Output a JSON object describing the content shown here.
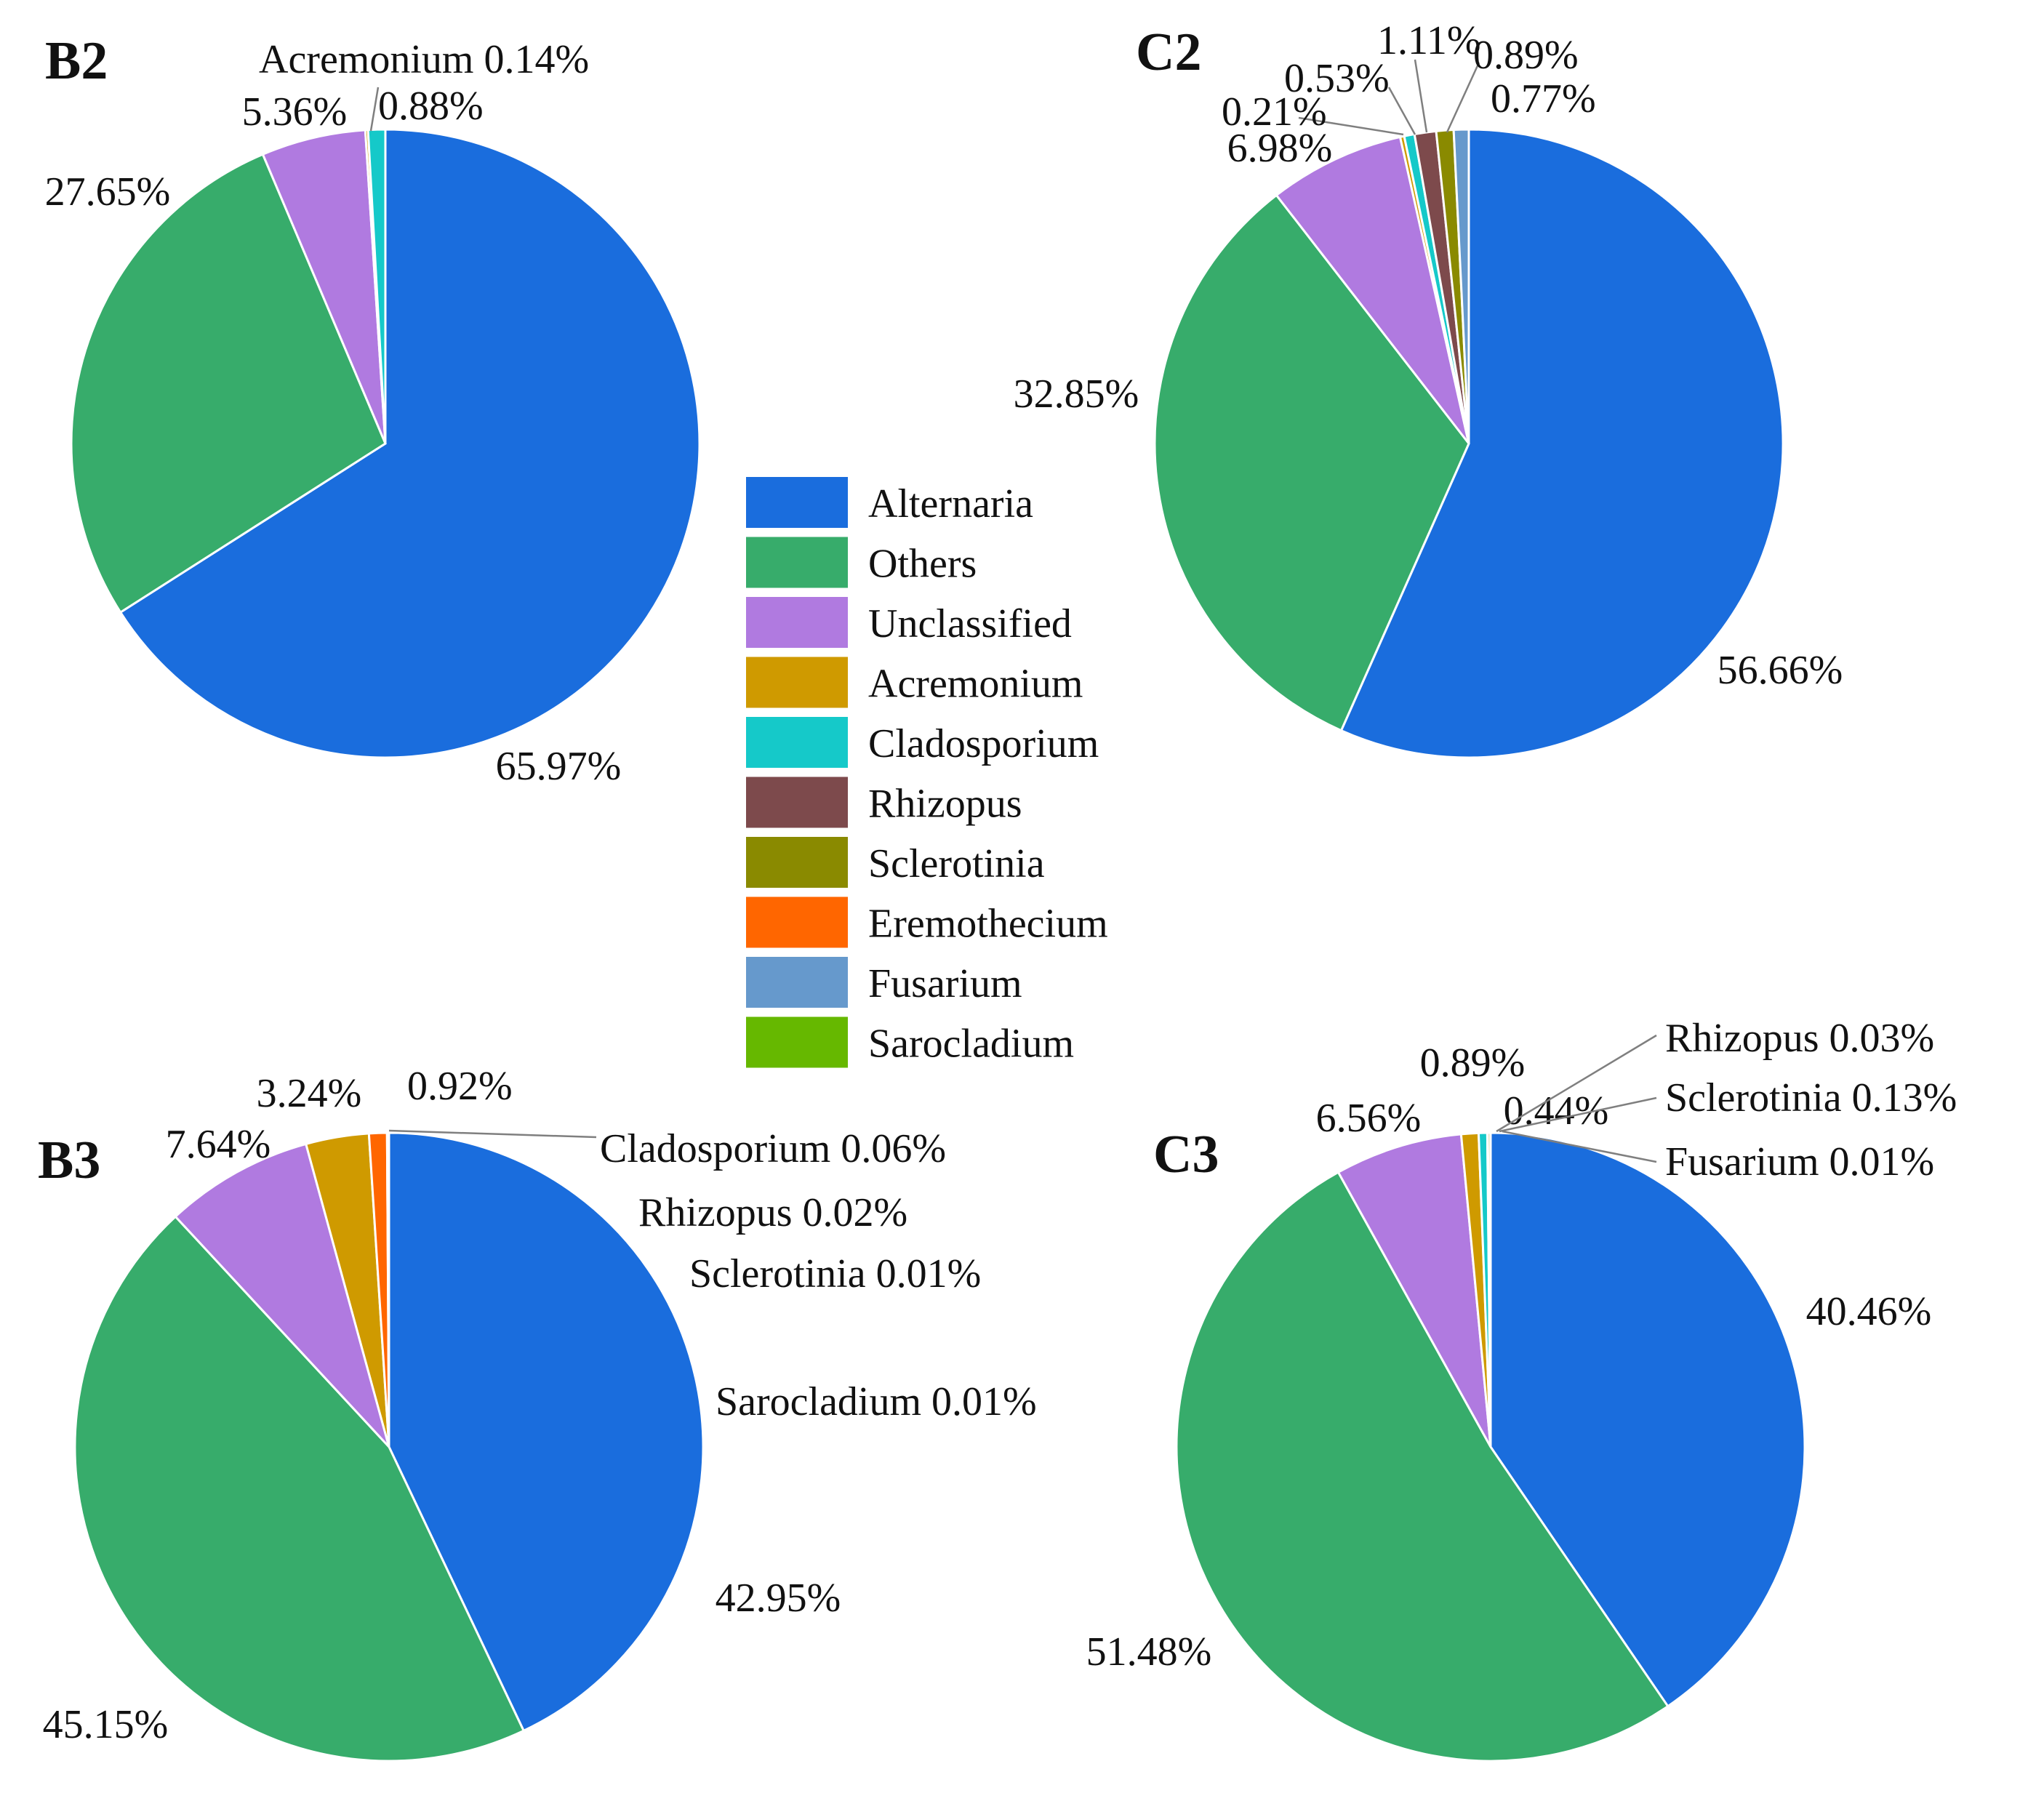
{
  "colors": {
    "Alternaria": "#1a6ddd",
    "Others": "#37ac6b",
    "Unclassified": "#b07ae0",
    "Acremonium": "#cf9a00",
    "Cladosporium": "#15c9c9",
    "Rhizopus": "#7d4a4c",
    "Sclerotinia": "#8a8a00",
    "Eremothecium": "#ff6600",
    "Fusarium": "#6699cc",
    "Sarocladium": "#66b800"
  },
  "legend": {
    "items": [
      "Alternaria",
      "Others",
      "Unclassified",
      "Acremonium",
      "Cladosporium",
      "Rhizopus",
      "Sclerotinia",
      "Eremothecium",
      "Fusarium",
      "Sarocladium"
    ]
  },
  "chart_data": [
    {
      "type": "pie",
      "title": "B2",
      "slices": [
        {
          "category": "Alternaria",
          "value": 65.97,
          "label": "65.97%"
        },
        {
          "category": "Others",
          "value": 27.65,
          "label": "27.65%"
        },
        {
          "category": "Unclassified",
          "value": 5.36,
          "label": "5.36%"
        },
        {
          "category": "Acremonium",
          "value": 0.14,
          "label": "Acremonium 0.14%"
        },
        {
          "category": "Cladosporium",
          "value": 0.88,
          "label": "0.88%"
        }
      ]
    },
    {
      "type": "pie",
      "title": "C2",
      "slices": [
        {
          "category": "Alternaria",
          "value": 56.66,
          "label": "56.66%"
        },
        {
          "category": "Others",
          "value": 32.85,
          "label": "32.85%"
        },
        {
          "category": "Unclassified",
          "value": 6.98,
          "label": "6.98%"
        },
        {
          "category": "Acremonium",
          "value": 0.21,
          "label": "0.21%"
        },
        {
          "category": "Cladosporium",
          "value": 0.53,
          "label": "0.53%"
        },
        {
          "category": "Rhizopus",
          "value": 1.11,
          "label": "1.11%"
        },
        {
          "category": "Sclerotinia",
          "value": 0.89,
          "label": "0.89%"
        },
        {
          "category": "Fusarium",
          "value": 0.77,
          "label": "0.77%"
        }
      ]
    },
    {
      "type": "pie",
      "title": "B3",
      "slices": [
        {
          "category": "Alternaria",
          "value": 42.95,
          "label": "42.95%"
        },
        {
          "category": "Others",
          "value": 45.15,
          "label": "45.15%"
        },
        {
          "category": "Unclassified",
          "value": 7.64,
          "label": "7.64%"
        },
        {
          "category": "Acremonium",
          "value": 3.24,
          "label": "3.24%"
        },
        {
          "category": "Eremothecium",
          "value": 0.92,
          "label": "0.92%"
        },
        {
          "category": "Cladosporium",
          "value": 0.06,
          "label": "Cladosporium 0.06%"
        },
        {
          "category": "Rhizopus",
          "value": 0.02,
          "label": "Rhizopus 0.02%"
        },
        {
          "category": "Sclerotinia",
          "value": 0.01,
          "label": "Sclerotinia 0.01%"
        },
        {
          "category": "Sarocladium",
          "value": 0.01,
          "label": "Sarocladium 0.01%"
        }
      ]
    },
    {
      "type": "pie",
      "title": "C3",
      "slices": [
        {
          "category": "Alternaria",
          "value": 40.46,
          "label": "40.46%"
        },
        {
          "category": "Others",
          "value": 51.48,
          "label": "51.48%"
        },
        {
          "category": "Unclassified",
          "value": 6.56,
          "label": "6.56%"
        },
        {
          "category": "Acremonium",
          "value": 0.89,
          "label": "0.89%"
        },
        {
          "category": "Cladosporium",
          "value": 0.44,
          "label": "0.44%"
        },
        {
          "category": "Rhizopus",
          "value": 0.03,
          "label": "Rhizopus 0.03%"
        },
        {
          "category": "Sclerotinia",
          "value": 0.13,
          "label": "Sclerotinia 0.13%"
        },
        {
          "category": "Fusarium",
          "value": 0.01,
          "label": "Fusarium 0.01%"
        }
      ]
    }
  ]
}
